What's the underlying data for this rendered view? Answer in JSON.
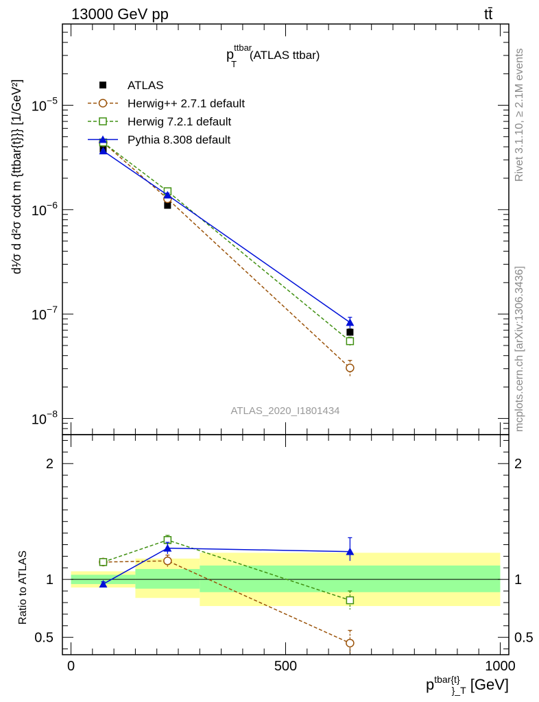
{
  "header": {
    "left": "13000 GeV pp",
    "right": "tt̄"
  },
  "title": {
    "main": "p",
    "sub": "T",
    "sup": "ttbar",
    "rest": " (ATLAS ttbar)"
  },
  "side_labels": {
    "rivet": "Rivet 3.1.10, ≥ 2.1M events",
    "mcplots": "mcplots.cern.ch [arXiv:1306.3436]"
  },
  "analysis_id": "ATLAS_2020_I1801434",
  "upper_ylabel": "d¹⁄σ d d²σ cdot m {ttbar{t}}} [1/GeV²]",
  "lower_ylabel": "Ratio to ATLAS",
  "xlabel": {
    "main": "p",
    "sup": "tbar{t}",
    "sub": "}_T",
    "unit": " [GeV]"
  },
  "colors": {
    "atlas": "#000000",
    "herwigpp": "#9a5209",
    "herwig7": "#3f8f10",
    "pythia": "#0010d8",
    "band_yellow": "#ffff9c",
    "band_green": "#99ff99"
  },
  "chart_data": [
    {
      "type": "scatter",
      "panel": "main",
      "yscale": "log",
      "xlim": [
        -20,
        1020
      ],
      "ylim": [
        7e-09,
        6e-05
      ],
      "y_ticks": [
        1e-08,
        1e-07,
        1e-06,
        1e-05
      ],
      "y_tick_labels": [
        {
          "base": "10",
          "exp": "−8"
        },
        {
          "base": "10",
          "exp": "−7"
        },
        {
          "base": "10",
          "exp": "−6"
        },
        {
          "base": "10",
          "exp": "−5"
        }
      ],
      "legend_position": "top-left",
      "legend": [
        {
          "name": "ATLAS",
          "key": "atlas"
        },
        {
          "name": "Herwig++ 2.7.1 default",
          "key": "herwigpp"
        },
        {
          "name": "Herwig 7.2.1 default",
          "key": "herwig7"
        },
        {
          "name": "Pythia 8.308 default",
          "key": "pythia"
        }
      ],
      "series": [
        {
          "key": "atlas",
          "x": [
            75,
            225,
            650
          ],
          "y": [
            3.8e-06,
            1.1e-06,
            6.7e-08
          ],
          "err": [
            [
              2e-07,
              2e-07
            ],
            [
              6e-08,
              6e-08
            ],
            [
              5e-09,
              5e-09
            ]
          ]
        },
        {
          "key": "herwigpp",
          "x": [
            75,
            225,
            650
          ],
          "y": [
            4.4e-06,
            1.27e-06,
            3.05e-08
          ],
          "err": [
            [
              1e-07,
              1e-07
            ],
            [
              6e-08,
              6e-08
            ],
            [
              5.5e-09,
              5.5e-09
            ]
          ]
        },
        {
          "key": "herwig7",
          "x": [
            75,
            225,
            650
          ],
          "y": [
            4.4e-06,
            1.5e-06,
            5.5e-08
          ],
          "err": [
            [
              1e-07,
              1e-07
            ],
            [
              6e-08,
              6e-08
            ],
            [
              5e-09,
              5e-09
            ]
          ]
        },
        {
          "key": "pythia",
          "x": [
            75,
            225,
            650
          ],
          "y": [
            3.65e-06,
            1.38e-06,
            8.3e-08
          ],
          "err": [
            [
              1e-07,
              1e-07
            ],
            [
              6e-08,
              6e-08
            ],
            [
              1e-08,
              1e-08
            ]
          ]
        }
      ]
    },
    {
      "type": "scatter",
      "panel": "ratio",
      "xlim": [
        -20,
        1020
      ],
      "ylim": [
        0.35,
        2.25
      ],
      "y_ticks": [
        0.5,
        1,
        2
      ],
      "y_tick_labels": [
        "0.5",
        "1",
        "2"
      ],
      "x_ticks": [
        0,
        500,
        1000
      ],
      "x_tick_labels": [
        "0",
        "500",
        "1000"
      ],
      "bands": [
        {
          "x": [
            0,
            150
          ],
          "y_outer": [
            0.93,
            1.07
          ],
          "y_inner": [
            0.96,
            1.04
          ]
        },
        {
          "x": [
            150,
            300
          ],
          "y_outer": [
            0.84,
            1.18
          ],
          "y_inner": [
            0.92,
            1.09
          ]
        },
        {
          "x": [
            300,
            1000
          ],
          "y_outer": [
            0.77,
            1.23
          ],
          "y_inner": [
            0.89,
            1.12
          ]
        }
      ],
      "series": [
        {
          "key": "herwigpp",
          "x": [
            75,
            225,
            650
          ],
          "y": [
            1.15,
            1.16,
            0.45
          ],
          "err": [
            [
              0.02,
              0.02
            ],
            [
              0.05,
              0.05
            ],
            [
              0.08,
              0.11
            ]
          ]
        },
        {
          "key": "herwig7",
          "x": [
            75,
            225,
            650
          ],
          "y": [
            1.15,
            1.34,
            0.82
          ],
          "err": [
            [
              0.02,
              0.02
            ],
            [
              0.05,
              0.04
            ],
            [
              0.08,
              0.08
            ]
          ]
        },
        {
          "key": "pythia",
          "x": [
            75,
            225,
            650
          ],
          "y": [
            0.96,
            1.27,
            1.24
          ],
          "err": [
            [
              0.02,
              0.02
            ],
            [
              0.05,
              0.05
            ],
            [
              0.08,
              0.12
            ]
          ]
        }
      ]
    }
  ]
}
